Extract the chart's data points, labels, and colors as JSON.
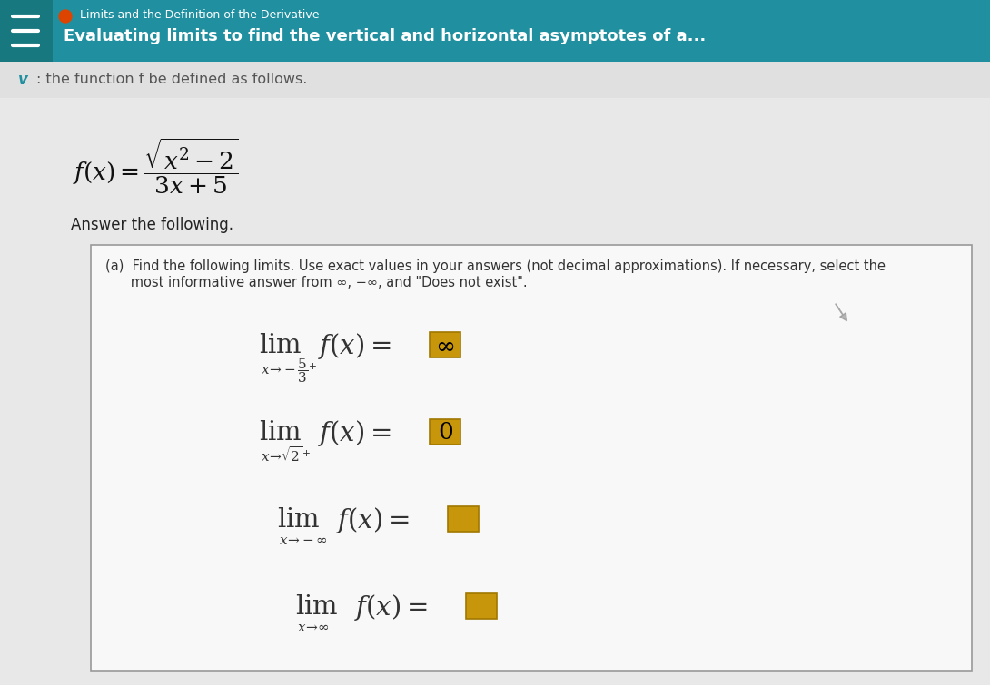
{
  "header_bg_color": "#2090A0",
  "header_dark_strip_color": "#187880",
  "header_line1": "Limits and the Definition of the Derivative",
  "header_line2": "Evaluating limits to find the vertical and horizontal asymptotes of a...",
  "header_text_color": "#ffffff",
  "subheader_bg_color": "#e0e0e0",
  "subheader_text": ": the function f be defined as follows.",
  "subheader_text_color": "#555555",
  "main_bg_color": "#c8c8c8",
  "content_bg_color": "#e8e8e8",
  "box_bg_color": "#f8f8f8",
  "box_border_color": "#999999",
  "answer_text": "Answer the following.",
  "part_a_line1": "(a)  Find the following limits. Use exact values in your answers (not decimal approximations). If necessary, select the",
  "part_a_line2": "      most informative answer from ∞, −∞, and \"Does not exist\".",
  "answer_box_color": "#c8960a",
  "answer_box_border": "#a07800"
}
